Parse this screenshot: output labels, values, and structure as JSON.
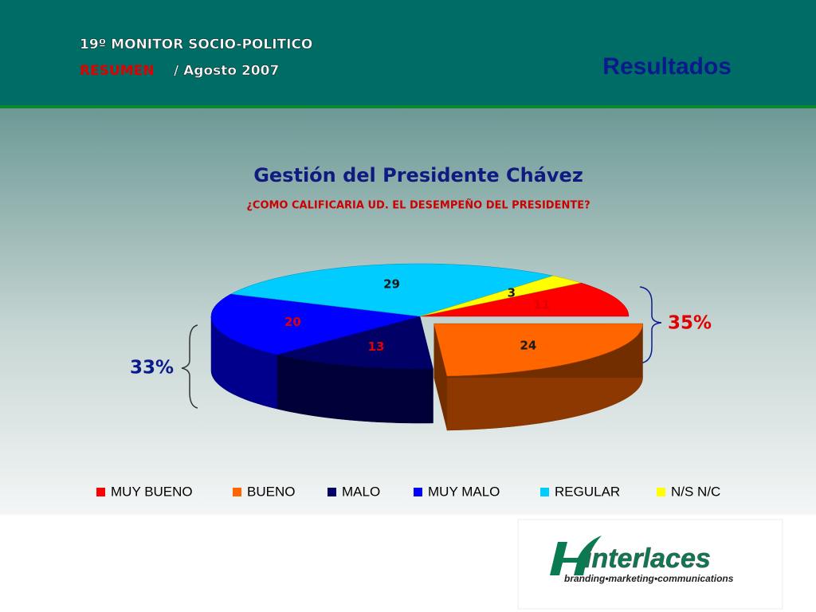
{
  "header": {
    "line1": "19º MONITOR SOCIO-POLITICO",
    "line2_highlight": "RESUMEN",
    "line2_rest": "/ Agosto 2007",
    "section": "Resultados"
  },
  "chart_data": {
    "type": "pie",
    "title": "Gestión del Presidente Chávez",
    "subtitle": "¿COMO CALIFICARIA UD. EL DESEMPEÑO DEL PRESIDENTE?",
    "categories": [
      "MUY BUENO",
      "BUENO",
      "MALO",
      "MUY MALO",
      "REGULAR",
      "N/S N/C"
    ],
    "values": [
      11,
      24,
      13,
      20,
      29,
      3
    ],
    "colors": [
      "#ff0000",
      "#ff6600",
      "#000066",
      "#0000ff",
      "#00ccff",
      "#ffff00"
    ],
    "annotations": [
      "35%",
      "33%"
    ],
    "legend": "bottom"
  },
  "logo": {
    "name": "interlaces",
    "tagline": "branding•marketing•communications"
  }
}
